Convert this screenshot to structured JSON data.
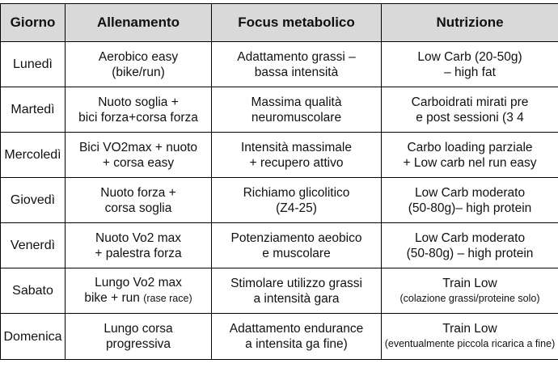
{
  "headers": [
    "Giorno",
    "Allenamento",
    "Focus metabolico",
    "Nutrizione"
  ],
  "rows": [
    {
      "day": "Lunedì",
      "training": [
        "Aerobico easy",
        "(bike/run)"
      ],
      "focus": [
        "Adattamento grassi –",
        "bassa intensità"
      ],
      "nutrition": [
        "Low Carb (20-50g)",
        "– high fat"
      ]
    },
    {
      "day": "Martedì",
      "training": [
        "Nuoto soglia +",
        "bici forza+corsa forza"
      ],
      "focus": [
        "Massima qualità",
        "neuromuscolare"
      ],
      "nutrition": [
        "Carboidrati mirati pre",
        "e post sessioni (3 4"
      ]
    },
    {
      "day": "Mercoledì",
      "training": [
        "Bici VO2max + nuoto",
        "+ corsa easy"
      ],
      "focus": [
        "Intensità massimale",
        "+ recupero attivo"
      ],
      "nutrition": [
        "Carbo loading parziale",
        "+ Low carb nel run easy"
      ]
    },
    {
      "day": "Giovedì",
      "training": [
        "Nuoto forza +",
        "corsa soglia"
      ],
      "focus": [
        "Richiamo glicolitico",
        "(Z4-25)"
      ],
      "nutrition": [
        "Low Carb moderato",
        "(50-80g)– high protein"
      ]
    },
    {
      "day": "Venerdì",
      "training": [
        "Nuoto Vo2 max",
        "+ palestra forza"
      ],
      "focus": [
        "Potenziamento aeobico",
        "e muscolare"
      ],
      "nutrition": [
        "Low Carb moderato",
        "(50-80g) – high protein"
      ]
    },
    {
      "day": "Sabato",
      "training": [
        "Lungo Vo2 max",
        "bike + run",
        "(rase race)"
      ],
      "focus": [
        "Stimolare utilizzo grassi",
        "a intensità gara"
      ],
      "nutrition": [
        "Train Low",
        "(colazione grassi/proteine solo)"
      ]
    },
    {
      "day": "Domenica",
      "training": [
        "Lungo corsa",
        "progressiva"
      ],
      "focus": [
        "Adattamento endurance",
        "a intensita ga fine)"
      ],
      "nutrition": [
        "Train Low",
        "(eventualmente piccola ricarica a fine)"
      ]
    }
  ]
}
